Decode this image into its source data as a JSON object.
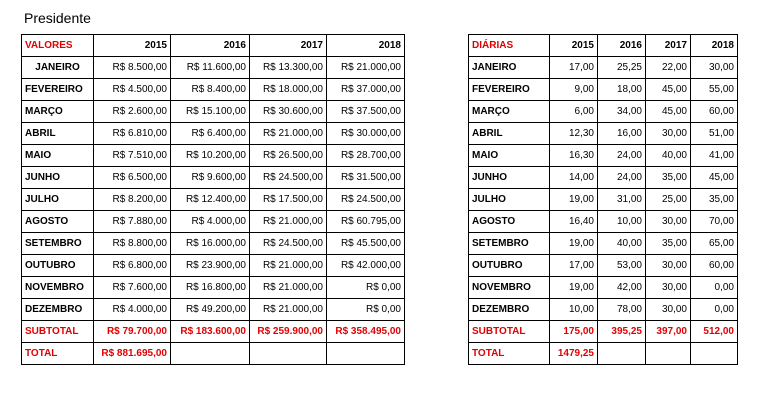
{
  "title": "Presidente",
  "valores": {
    "header": "VALORES",
    "years": [
      "2015",
      "2016",
      "2017",
      "2018"
    ],
    "rows": [
      {
        "month": "JANEIRO",
        "values": [
          "R$ 8.500,00",
          "R$ 11.600,00",
          "R$ 13.300,00",
          "R$ 21.000,00"
        ]
      },
      {
        "month": "FEVEREIRO",
        "values": [
          "R$ 4.500,00",
          "R$ 8.400,00",
          "R$ 18.000,00",
          "R$ 37.000,00"
        ]
      },
      {
        "month": "MARÇO",
        "values": [
          "R$ 2.600,00",
          "R$ 15.100,00",
          "R$ 30.600,00",
          "R$ 37.500,00"
        ]
      },
      {
        "month": "ABRIL",
        "values": [
          "R$ 6.810,00",
          "R$ 6.400,00",
          "R$ 21.000,00",
          "R$ 30.000,00"
        ]
      },
      {
        "month": "MAIO",
        "values": [
          "R$ 7.510,00",
          "R$ 10.200,00",
          "R$ 26.500,00",
          "R$ 28.700,00"
        ]
      },
      {
        "month": "JUNHO",
        "values": [
          "R$ 6.500,00",
          "R$ 9.600,00",
          "R$ 24.500,00",
          "R$ 31.500,00"
        ]
      },
      {
        "month": "JULHO",
        "values": [
          "R$ 8.200,00",
          "R$ 12.400,00",
          "R$ 17.500,00",
          "R$ 24.500,00"
        ]
      },
      {
        "month": "AGOSTO",
        "values": [
          "R$ 7.880,00",
          "R$ 4.000,00",
          "R$ 21.000,00",
          "R$ 60.795,00"
        ]
      },
      {
        "month": "SETEMBRO",
        "values": [
          "R$ 8.800,00",
          "R$ 16.000,00",
          "R$ 24.500,00",
          "R$ 45.500,00"
        ]
      },
      {
        "month": "OUTUBRO",
        "values": [
          "R$ 6.800,00",
          "R$ 23.900,00",
          "R$ 21.000,00",
          "R$ 42.000,00"
        ]
      },
      {
        "month": "NOVEMBRO",
        "values": [
          "R$ 7.600,00",
          "R$ 16.800,00",
          "R$ 21.000,00",
          "R$ 0,00"
        ]
      },
      {
        "month": "DEZEMBRO",
        "values": [
          "R$ 4.000,00",
          "R$ 49.200,00",
          "R$ 21.000,00",
          "R$ 0,00"
        ]
      }
    ],
    "subtotal_label": "SUBTOTAL",
    "subtotal": [
      "R$ 79.700,00",
      "R$ 183.600,00",
      "R$ 259.900,00",
      "R$ 358.495,00"
    ],
    "total_label": "TOTAL",
    "total": "R$ 881.695,00"
  },
  "diarias": {
    "header": "DIÁRIAS",
    "years": [
      "2015",
      "2016",
      "2017",
      "2018"
    ],
    "rows": [
      {
        "month": "JANEIRO",
        "values": [
          "17,00",
          "25,25",
          "22,00",
          "30,00"
        ]
      },
      {
        "month": "FEVEREIRO",
        "values": [
          "9,00",
          "18,00",
          "45,00",
          "55,00"
        ]
      },
      {
        "month": "MARÇO",
        "values": [
          "6,00",
          "34,00",
          "45,00",
          "60,00"
        ]
      },
      {
        "month": "ABRIL",
        "values": [
          "12,30",
          "16,00",
          "30,00",
          "51,00"
        ]
      },
      {
        "month": "MAIO",
        "values": [
          "16,30",
          "24,00",
          "40,00",
          "41,00"
        ]
      },
      {
        "month": "JUNHO",
        "values": [
          "14,00",
          "24,00",
          "35,00",
          "45,00"
        ]
      },
      {
        "month": "JULHO",
        "values": [
          "19,00",
          "31,00",
          "25,00",
          "35,00"
        ]
      },
      {
        "month": "AGOSTO",
        "values": [
          "16,40",
          "10,00",
          "30,00",
          "70,00"
        ]
      },
      {
        "month": "SETEMBRO",
        "values": [
          "19,00",
          "40,00",
          "35,00",
          "65,00"
        ]
      },
      {
        "month": "OUTUBRO",
        "values": [
          "17,00",
          "53,00",
          "30,00",
          "60,00"
        ]
      },
      {
        "month": "NOVEMBRO",
        "values": [
          "19,00",
          "42,00",
          "30,00",
          "0,00"
        ]
      },
      {
        "month": "DEZEMBRO",
        "values": [
          "10,00",
          "78,00",
          "30,00",
          "0,00"
        ]
      }
    ],
    "subtotal_label": "SUBTOTAL",
    "subtotal": [
      "175,00",
      "395,25",
      "397,00",
      "512,00"
    ],
    "total_label": "TOTAL",
    "total": "1479,25"
  }
}
